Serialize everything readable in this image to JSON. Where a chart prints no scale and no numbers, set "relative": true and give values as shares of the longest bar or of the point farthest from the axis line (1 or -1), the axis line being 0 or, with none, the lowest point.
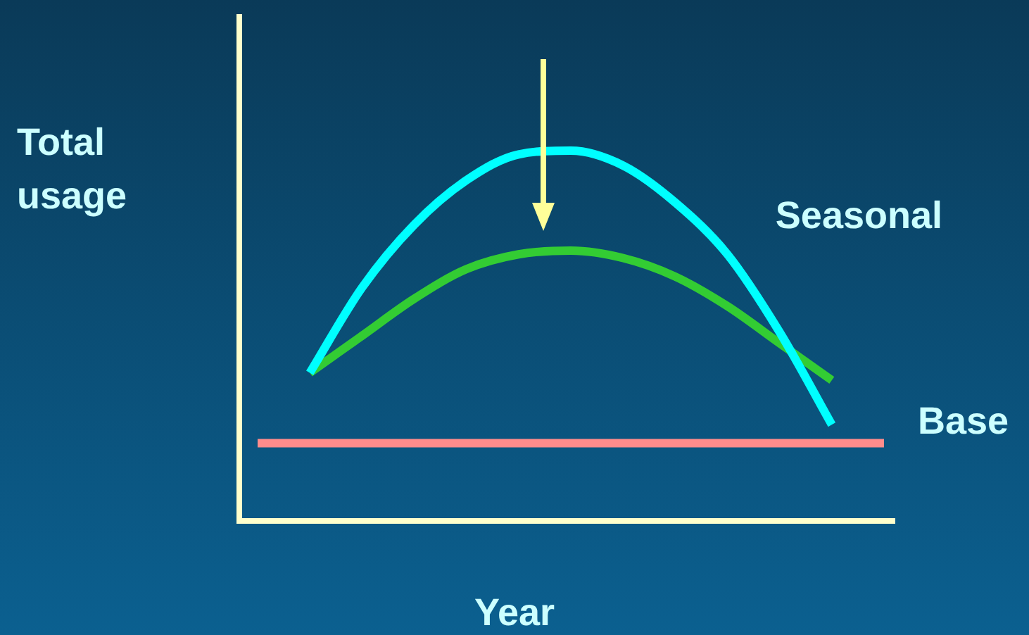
{
  "chart_data": {
    "type": "line",
    "relative": true,
    "xlabel": "Year",
    "ylabel": "Total usage",
    "categories": [
      null,
      null,
      null,
      null,
      null,
      null,
      null,
      null,
      null,
      null,
      null,
      null,
      null
    ],
    "legend": false,
    "grid": false,
    "marker": "none",
    "series": [
      {
        "name": "Seasonal",
        "color": "#00ffff",
        "values": [
          null,
          0.4,
          0.63,
          0.8,
          0.92,
          0.99,
          1.0,
          0.96,
          0.86,
          0.72,
          0.51,
          0.26,
          null
        ]
      },
      {
        "color": "#33cc33",
        "values": [
          null,
          0.4,
          0.5,
          0.6,
          0.68,
          0.72,
          0.73,
          0.71,
          0.66,
          0.58,
          0.48,
          0.38,
          null
        ]
      },
      {
        "name": "Base",
        "color": "#ff8c8c",
        "values": [
          0.21,
          0.21,
          0.21,
          0.21,
          0.21,
          0.21,
          0.21,
          0.21,
          0.21,
          0.21,
          0.21,
          0.21,
          0.21
        ]
      }
    ]
  }
}
